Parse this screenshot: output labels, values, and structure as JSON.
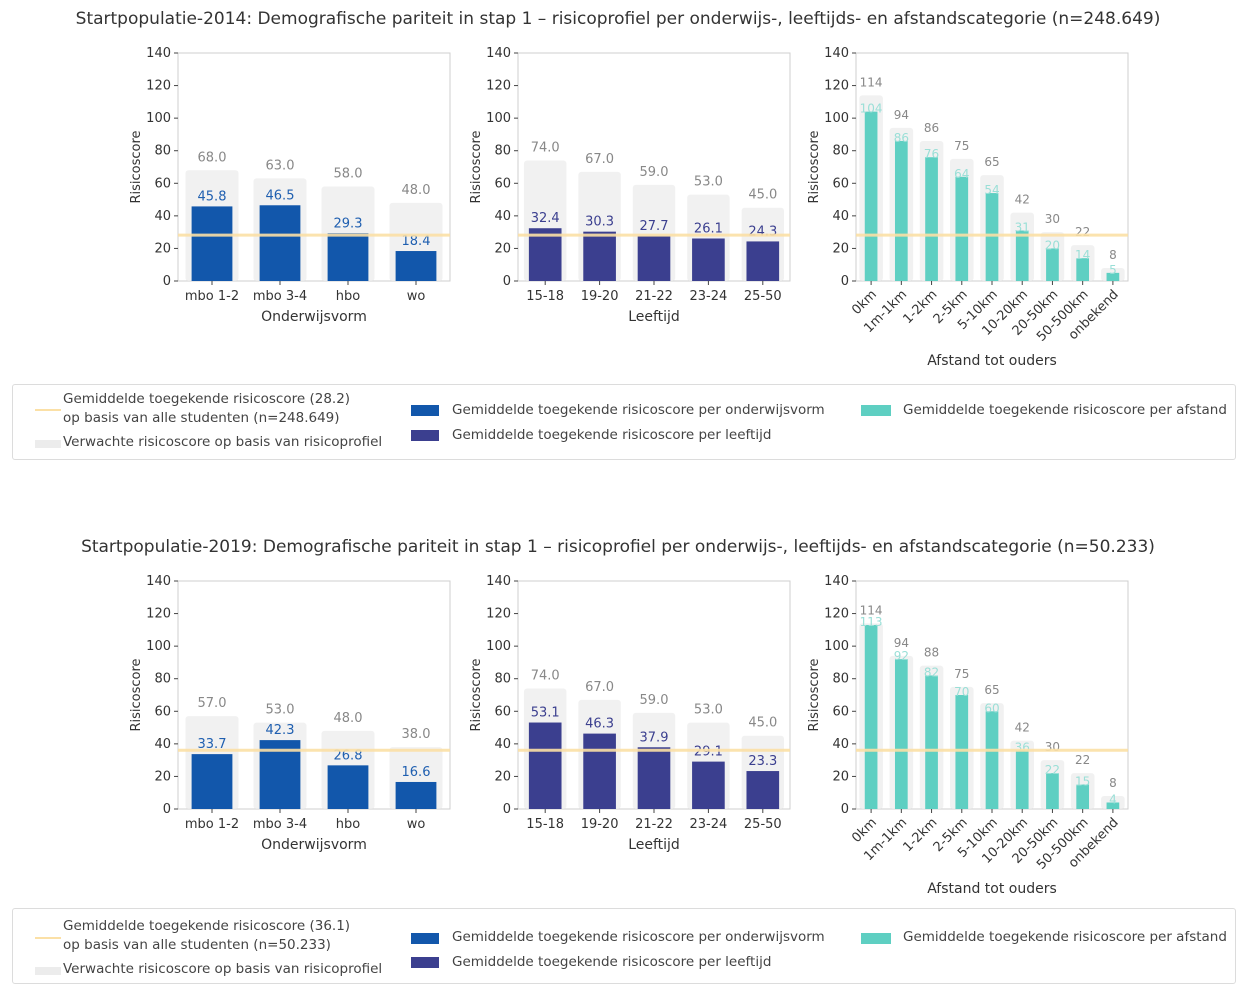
{
  "colors": {
    "education": "#1257ab",
    "age": "#3b3f8f",
    "distance": "#5ecfc2",
    "expected": "#ececec",
    "average_line": "#fbe0a6",
    "axis": "#444444",
    "label_expected": "#888888",
    "label_education": "#1f5fb0",
    "label_age": "#3b3f8f",
    "label_distance": "#9adfd7"
  },
  "figures": [
    {
      "title": "Startpopulatie-2014: Demografische pariteit in stap 1 – risicoprofiel per onderwijs-, leeftijds- en afstandscategorie (n=248.649)",
      "legend": {
        "avg_line_label": "Gemiddelde toegekende risicoscore (28.2)\nop basis van alle studenten (n=248.649)",
        "expected_label": "Verwachte risicoscore op basis van risicoprofiel",
        "education_label": "Gemiddelde toegekende risicoscore per onderwijsvorm",
        "age_label": "Gemiddelde toegekende risicoscore per leeftijd",
        "distance_label": "Gemiddelde toegekende risicoscore per afstand"
      }
    },
    {
      "title": "Startpopulatie-2019: Demografische pariteit in stap 1 – risicoprofiel per onderwijs-, leeftijds- en afstandscategorie (n=50.233)",
      "legend": {
        "avg_line_label": "Gemiddelde toegekende risicoscore (36.1)\nop basis van alle studenten (n=50.233)",
        "expected_label": "Verwachte risicoscore op basis van risicoprofiel",
        "education_label": "Gemiddelde toegekende risicoscore per onderwijsvorm",
        "age_label": "Gemiddelde toegekende risicoscore per leeftijd",
        "distance_label": "Gemiddelde toegekende risicoscore per afstand"
      }
    }
  ],
  "chart_data": [
    {
      "type": "bar",
      "title": "",
      "xlabel": "Onderwijsvorm",
      "ylabel": "Risicoscore",
      "ylim": [
        0,
        140
      ],
      "yticks": [
        0,
        20,
        40,
        60,
        80,
        100,
        120,
        140
      ],
      "average_line": 28.2,
      "color_key": "education",
      "value_decimals": 1,
      "expected_decimals": 1,
      "categories": [
        "mbo 1-2",
        "mbo 3-4",
        "hbo",
        "wo"
      ],
      "series": [
        {
          "values": [
            68.0,
            63.0,
            58.0,
            48.0
          ]
        },
        {
          "values": [
            45.8,
            46.5,
            29.3,
            18.4
          ]
        }
      ]
    },
    {
      "type": "bar",
      "title": "",
      "xlabel": "Leeftijd",
      "ylabel": "Risicoscore",
      "ylim": [
        0,
        140
      ],
      "yticks": [
        0,
        20,
        40,
        60,
        80,
        100,
        120,
        140
      ],
      "average_line": 28.2,
      "color_key": "age",
      "value_decimals": 1,
      "expected_decimals": 1,
      "categories": [
        "15-18",
        "19-20",
        "21-22",
        "23-24",
        "25-50"
      ],
      "series": [
        {
          "values": [
            74.0,
            67.0,
            59.0,
            53.0,
            45.0
          ]
        },
        {
          "values": [
            32.4,
            30.3,
            27.7,
            26.1,
            24.3
          ]
        }
      ]
    },
    {
      "type": "bar",
      "title": "",
      "xlabel": "Afstand tot ouders",
      "ylabel": "Risicoscore",
      "ylim": [
        0,
        140
      ],
      "yticks": [
        0,
        20,
        40,
        60,
        80,
        100,
        120,
        140
      ],
      "average_line": 28.2,
      "color_key": "distance",
      "value_decimals": 0,
      "expected_decimals": 0,
      "rotate_labels": true,
      "categories": [
        "0km",
        "1m-1km",
        "1-2km",
        "2-5km",
        "5-10km",
        "10-20km",
        "20-50km",
        "50-500km",
        "onbekend"
      ],
      "series": [
        {
          "values": [
            114,
            94,
            86,
            75,
            65,
            42,
            30,
            22,
            8
          ]
        },
        {
          "values": [
            104,
            86,
            76,
            64,
            54,
            31,
            20,
            14,
            5
          ]
        }
      ]
    },
    {
      "type": "bar",
      "title": "",
      "xlabel": "Onderwijsvorm",
      "ylabel": "Risicoscore",
      "ylim": [
        0,
        140
      ],
      "yticks": [
        0,
        20,
        40,
        60,
        80,
        100,
        120,
        140
      ],
      "average_line": 36.1,
      "color_key": "education",
      "value_decimals": 1,
      "expected_decimals": 1,
      "categories": [
        "mbo 1-2",
        "mbo 3-4",
        "hbo",
        "wo"
      ],
      "series": [
        {
          "values": [
            57.0,
            53.0,
            48.0,
            38.0
          ]
        },
        {
          "values": [
            33.7,
            42.3,
            26.8,
            16.6
          ]
        }
      ]
    },
    {
      "type": "bar",
      "title": "",
      "xlabel": "Leeftijd",
      "ylabel": "Risicoscore",
      "ylim": [
        0,
        140
      ],
      "yticks": [
        0,
        20,
        40,
        60,
        80,
        100,
        120,
        140
      ],
      "average_line": 36.1,
      "color_key": "age",
      "value_decimals": 1,
      "expected_decimals": 1,
      "categories": [
        "15-18",
        "19-20",
        "21-22",
        "23-24",
        "25-50"
      ],
      "series": [
        {
          "values": [
            74.0,
            67.0,
            59.0,
            53.0,
            45.0
          ]
        },
        {
          "values": [
            53.1,
            46.3,
            37.9,
            29.1,
            23.3
          ]
        }
      ]
    },
    {
      "type": "bar",
      "title": "",
      "xlabel": "Afstand tot ouders",
      "ylabel": "Risicoscore",
      "ylim": [
        0,
        140
      ],
      "yticks": [
        0,
        20,
        40,
        60,
        80,
        100,
        120,
        140
      ],
      "average_line": 36.1,
      "color_key": "distance",
      "value_decimals": 0,
      "expected_decimals": 0,
      "rotate_labels": true,
      "categories": [
        "0km",
        "1m-1km",
        "1-2km",
        "2-5km",
        "5-10km",
        "10-20km",
        "20-50km",
        "50-500km",
        "onbekend"
      ],
      "series": [
        {
          "values": [
            114,
            94,
            88,
            75,
            65,
            42,
            30,
            22,
            8
          ]
        },
        {
          "values": [
            113,
            92,
            82,
            70,
            60,
            36,
            22,
            15,
            4
          ]
        }
      ]
    }
  ]
}
